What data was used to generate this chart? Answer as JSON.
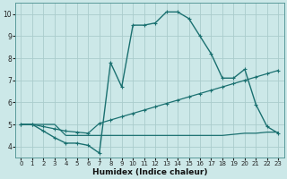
{
  "xlabel": "Humidex (Indice chaleur)",
  "bg_color": "#cce8e8",
  "grid_color": "#aacccc",
  "line_color": "#1a7070",
  "xlim": [
    -0.5,
    23.5
  ],
  "ylim": [
    3.5,
    10.5
  ],
  "yticks": [
    4,
    5,
    6,
    7,
    8,
    9,
    10
  ],
  "xticks": [
    0,
    1,
    2,
    3,
    4,
    5,
    6,
    7,
    8,
    9,
    10,
    11,
    12,
    13,
    14,
    15,
    16,
    17,
    18,
    19,
    20,
    21,
    22,
    23
  ],
  "line1_x": [
    0,
    1,
    2,
    3,
    4,
    5,
    6,
    7,
    8,
    9,
    10,
    11,
    12,
    13,
    14,
    15,
    16,
    17,
    18,
    19,
    20,
    21,
    22,
    23
  ],
  "line1_y": [
    5.0,
    5.0,
    4.7,
    4.4,
    4.15,
    4.15,
    4.05,
    3.7,
    7.8,
    6.7,
    9.5,
    9.5,
    9.6,
    10.1,
    10.1,
    9.8,
    9.0,
    8.2,
    7.1,
    7.1,
    7.5,
    5.9,
    4.9,
    4.6
  ],
  "line2_x": [
    0,
    1,
    2,
    3,
    4,
    5,
    6,
    7,
    8,
    9,
    10,
    11,
    12,
    13,
    14,
    15,
    16,
    17,
    18,
    19,
    20,
    21,
    22,
    23
  ],
  "line2_y": [
    5.0,
    5.0,
    4.9,
    4.8,
    4.7,
    4.65,
    4.6,
    5.05,
    5.2,
    5.35,
    5.5,
    5.65,
    5.8,
    5.95,
    6.1,
    6.25,
    6.4,
    6.55,
    6.7,
    6.85,
    7.0,
    7.15,
    7.3,
    7.45
  ],
  "line3_x": [
    0,
    1,
    2,
    3,
    4,
    5,
    6,
    7,
    8,
    9,
    10,
    11,
    12,
    13,
    14,
    15,
    16,
    17,
    18,
    19,
    20,
    21,
    22,
    23
  ],
  "line3_y": [
    5.0,
    5.0,
    5.0,
    5.0,
    4.5,
    4.5,
    4.5,
    4.5,
    4.5,
    4.5,
    4.5,
    4.5,
    4.5,
    4.5,
    4.5,
    4.5,
    4.5,
    4.5,
    4.5,
    4.55,
    4.6,
    4.6,
    4.65,
    4.65
  ]
}
